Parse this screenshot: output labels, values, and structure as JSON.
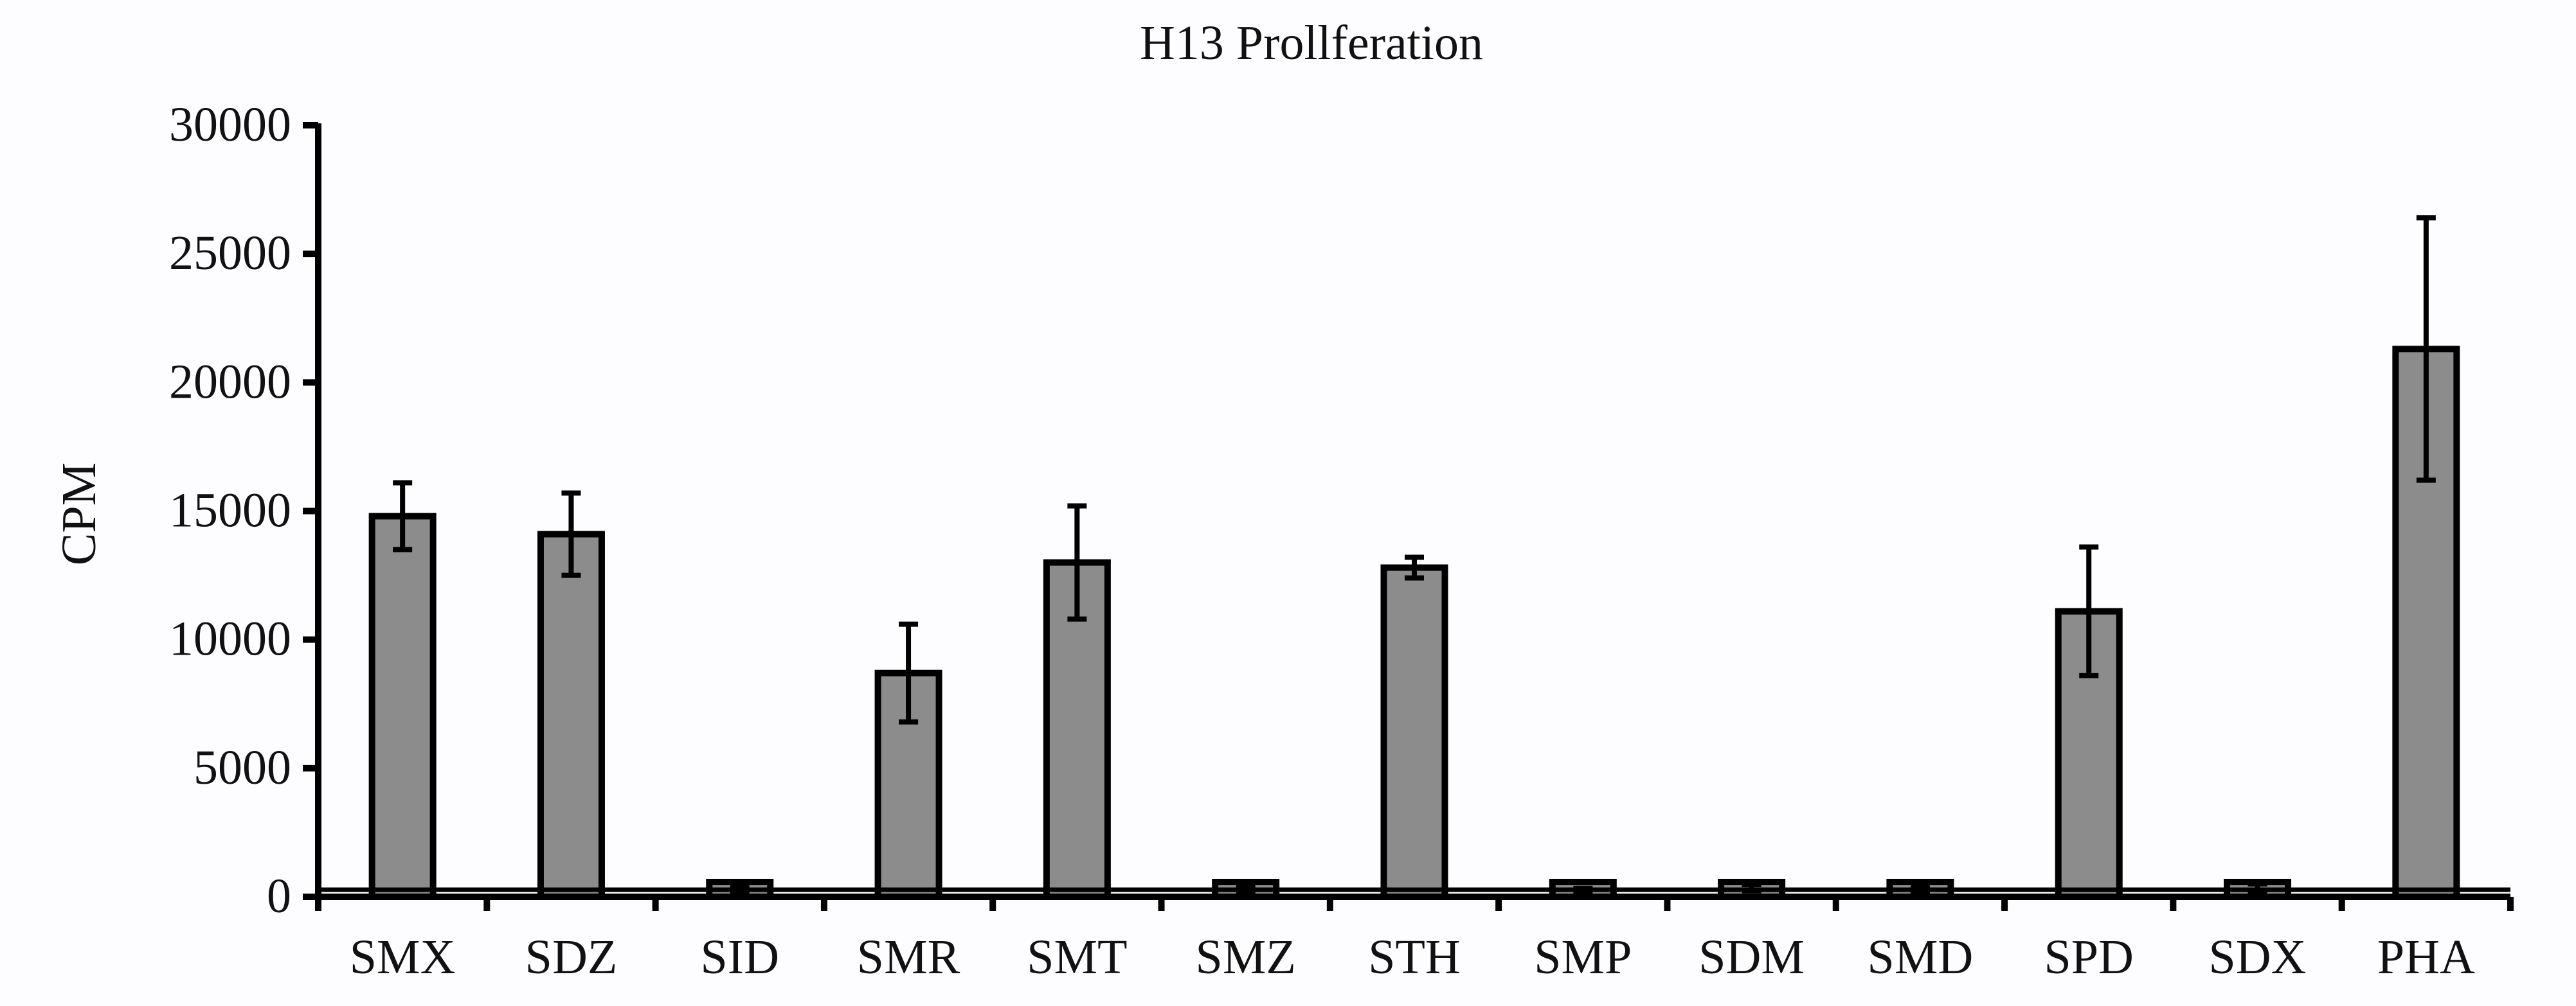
{
  "chart_data": {
    "type": "bar",
    "title": "H13 Prollferation",
    "xlabel": "",
    "ylabel": "CPM",
    "ylim": [
      0,
      30000
    ],
    "yticks": [
      0,
      5000,
      10000,
      15000,
      20000,
      25000,
      30000
    ],
    "grid": false,
    "categories": [
      "SMX",
      "SDZ",
      "SID",
      "SMR",
      "SMT",
      "SMZ",
      "STH",
      "SMP",
      "SDM",
      "SMD",
      "SPD",
      "SDX",
      "PHA"
    ],
    "values": [
      14800,
      14100,
      300,
      8700,
      13000,
      300,
      12800,
      250,
      350,
      300,
      11100,
      350,
      21300
    ],
    "errors": [
      1300,
      1600,
      100,
      1900,
      2200,
      100,
      400,
      80,
      120,
      100,
      2500,
      150,
      5100
    ],
    "colors": {
      "bar": "#8c8c8c",
      "bar_stroke": "#000000",
      "background": "#fdfdff"
    }
  }
}
